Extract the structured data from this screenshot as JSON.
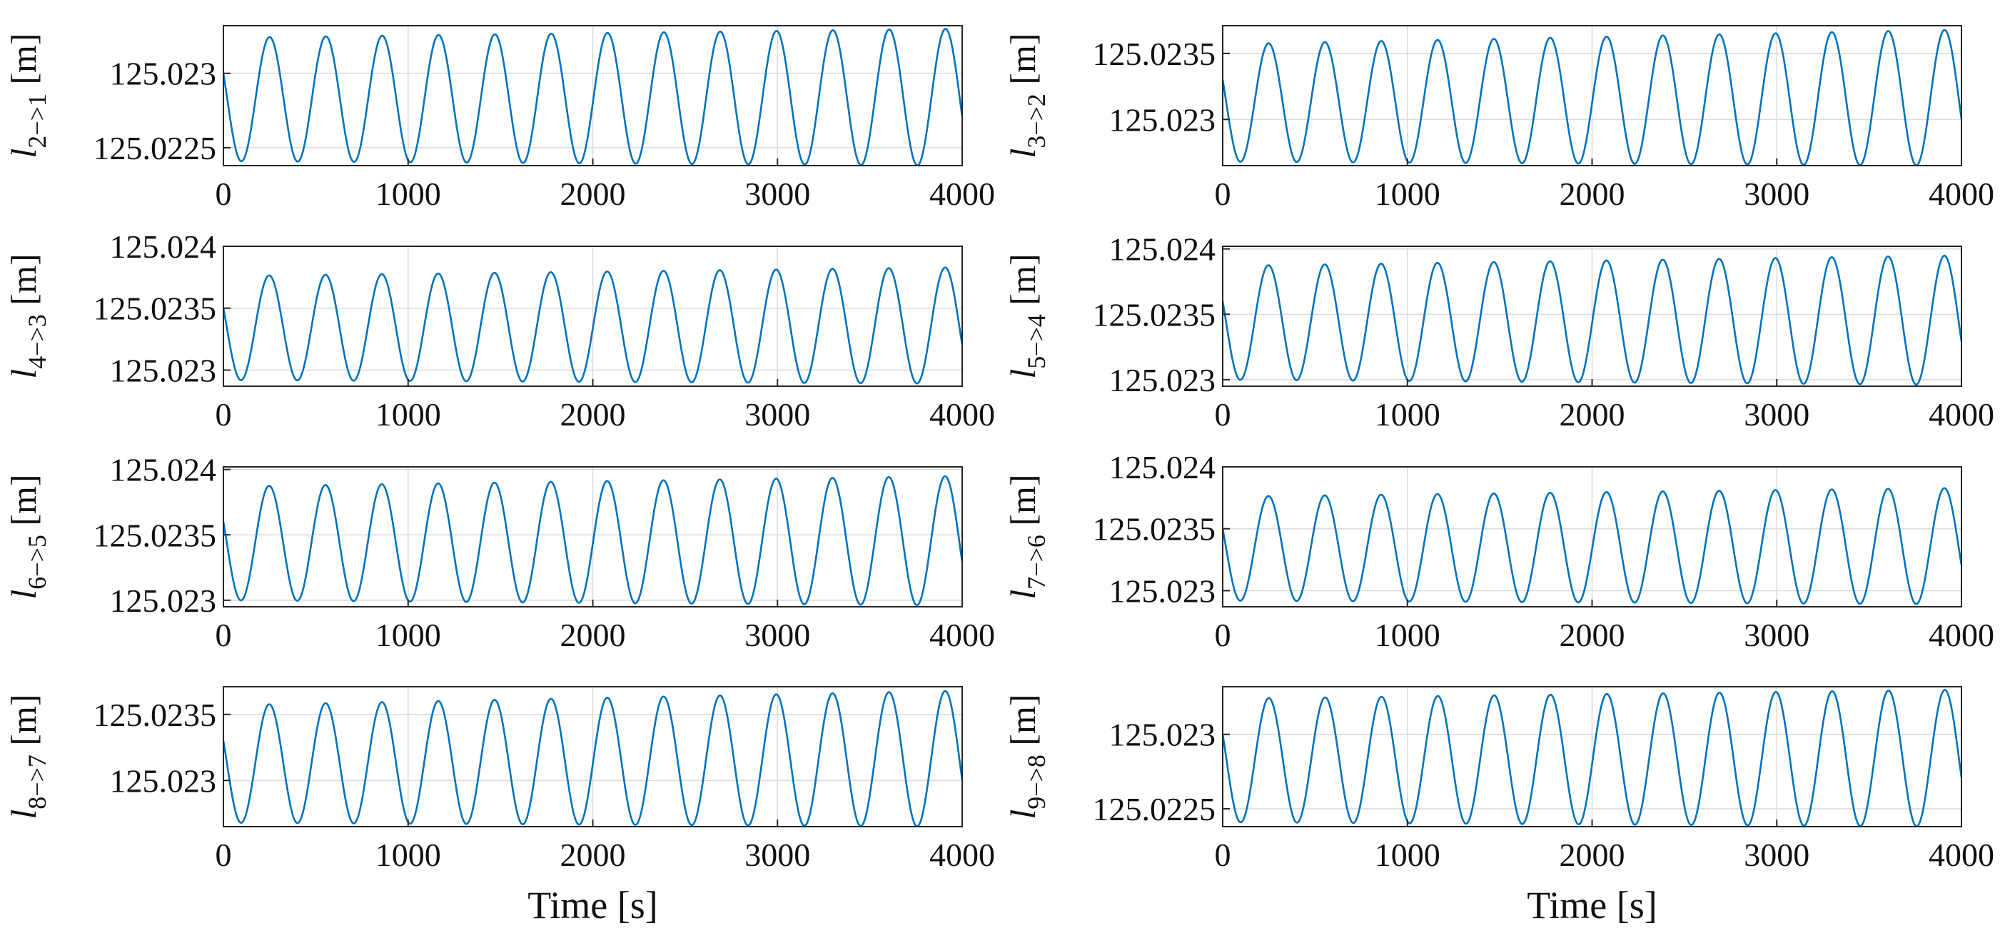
{
  "colors": {
    "series": "#0072BD",
    "grid": "#dcdcdc",
    "axis": "#262626"
  },
  "chart_data": [
    {
      "type": "line",
      "ylabel": {
        "symbol": "l",
        "subscript": "2−>1",
        "unit": "[m]"
      },
      "xlabel": "",
      "xlim": [
        0,
        4000
      ],
      "ylim": [
        125.02238,
        125.02332
      ],
      "xticks": [
        0,
        1000,
        2000,
        3000,
        4000
      ],
      "xtick_labels": [
        "0",
        "1000",
        "2000",
        "3000",
        "4000"
      ],
      "yticks": [
        125.0225,
        125.023
      ],
      "ytick_labels": [
        "125.0225",
        "125.023"
      ],
      "grid": true,
      "series": [
        {
          "period": 305,
          "start": 125.023,
          "min_start": 125.02241,
          "min_end": 125.02238,
          "max_start": 125.02324,
          "max_end": 125.0233
        }
      ]
    },
    {
      "type": "line",
      "ylabel": {
        "symbol": "l",
        "subscript": "3−>2",
        "unit": "[m]"
      },
      "xlabel": "",
      "xlim": [
        0,
        4000
      ],
      "ylim": [
        125.02265,
        125.02371
      ],
      "xticks": [
        0,
        1000,
        2000,
        3000,
        4000
      ],
      "xtick_labels": [
        "0",
        "1000",
        "2000",
        "3000",
        "4000"
      ],
      "yticks": [
        125.023,
        125.0235
      ],
      "ytick_labels": [
        "125.023",
        "125.0235"
      ],
      "grid": true,
      "series": [
        {
          "period": 305,
          "start": 125.0233,
          "min_start": 125.02268,
          "min_end": 125.02265,
          "max_start": 125.02357,
          "max_end": 125.02368
        }
      ]
    },
    {
      "type": "line",
      "ylabel": {
        "symbol": "l",
        "subscript": "4−>3",
        "unit": "[m]"
      },
      "xlabel": "",
      "xlim": [
        0,
        4000
      ],
      "ylim": [
        125.02287,
        125.024
      ],
      "xticks": [
        0,
        1000,
        2000,
        3000,
        4000
      ],
      "xtick_labels": [
        "0",
        "1000",
        "2000",
        "3000",
        "4000"
      ],
      "yticks": [
        125.023,
        125.0235,
        125.024
      ],
      "ytick_labels": [
        "125.023",
        "125.0235",
        "125.024"
      ],
      "grid": true,
      "series": [
        {
          "period": 305,
          "start": 125.0235,
          "min_start": 125.02292,
          "min_end": 125.02289,
          "max_start": 125.02376,
          "max_end": 125.02383
        }
      ]
    },
    {
      "type": "line",
      "ylabel": {
        "symbol": "l",
        "subscript": "5−>4",
        "unit": "[m]"
      },
      "xlabel": "",
      "xlim": [
        0,
        4000
      ],
      "ylim": [
        125.02295,
        125.02402
      ],
      "xticks": [
        0,
        1000,
        2000,
        3000,
        4000
      ],
      "xtick_labels": [
        "0",
        "1000",
        "2000",
        "3000",
        "4000"
      ],
      "yticks": [
        125.023,
        125.0235,
        125.024
      ],
      "ytick_labels": [
        "125.023",
        "125.0235",
        "125.024"
      ],
      "grid": true,
      "series": [
        {
          "period": 305,
          "start": 125.0236,
          "min_start": 125.023,
          "min_end": 125.02296,
          "max_start": 125.02387,
          "max_end": 125.02395
        }
      ]
    },
    {
      "type": "line",
      "ylabel": {
        "symbol": "l",
        "subscript": "6−>5",
        "unit": "[m]"
      },
      "xlabel": "",
      "xlim": [
        0,
        4000
      ],
      "ylim": [
        125.02295,
        125.02402
      ],
      "xticks": [
        0,
        1000,
        2000,
        3000,
        4000
      ],
      "xtick_labels": [
        "0",
        "1000",
        "2000",
        "3000",
        "4000"
      ],
      "yticks": [
        125.023,
        125.0235,
        125.024
      ],
      "ytick_labels": [
        "125.023",
        "125.0235",
        "125.024"
      ],
      "grid": true,
      "series": [
        {
          "period": 305,
          "start": 125.0236,
          "min_start": 125.023,
          "min_end": 125.02296,
          "max_start": 125.02387,
          "max_end": 125.02395
        }
      ]
    },
    {
      "type": "line",
      "ylabel": {
        "symbol": "l",
        "subscript": "7−>6",
        "unit": "[m]"
      },
      "xlabel": "",
      "xlim": [
        0,
        4000
      ],
      "ylim": [
        125.02287,
        125.024
      ],
      "xticks": [
        0,
        1000,
        2000,
        3000,
        4000
      ],
      "xtick_labels": [
        "0",
        "1000",
        "2000",
        "3000",
        "4000"
      ],
      "yticks": [
        125.023,
        125.0235,
        125.024
      ],
      "ytick_labels": [
        "125.023",
        "125.0235",
        "125.024"
      ],
      "grid": true,
      "series": [
        {
          "period": 305,
          "start": 125.0235,
          "min_start": 125.02292,
          "min_end": 125.02289,
          "max_start": 125.02376,
          "max_end": 125.02383
        }
      ]
    },
    {
      "type": "line",
      "ylabel": {
        "symbol": "l",
        "subscript": "8−>7",
        "unit": "[m]"
      },
      "xlabel": "Time [s]",
      "xlim": [
        0,
        4000
      ],
      "ylim": [
        125.02265,
        125.02371
      ],
      "xticks": [
        0,
        1000,
        2000,
        3000,
        4000
      ],
      "xtick_labels": [
        "0",
        "1000",
        "2000",
        "3000",
        "4000"
      ],
      "yticks": [
        125.023,
        125.0235
      ],
      "ytick_labels": [
        "125.023",
        "125.0235"
      ],
      "grid": true,
      "series": [
        {
          "period": 305,
          "start": 125.0233,
          "min_start": 125.02268,
          "min_end": 125.02265,
          "max_start": 125.02357,
          "max_end": 125.02368
        }
      ]
    },
    {
      "type": "line",
      "ylabel": {
        "symbol": "l",
        "subscript": "9−>8",
        "unit": "[m]"
      },
      "xlabel": "Time [s]",
      "xlim": [
        0,
        4000
      ],
      "ylim": [
        125.02238,
        125.02332
      ],
      "xticks": [
        0,
        1000,
        2000,
        3000,
        4000
      ],
      "xtick_labels": [
        "0",
        "1000",
        "2000",
        "3000",
        "4000"
      ],
      "yticks": [
        125.0225,
        125.023
      ],
      "ytick_labels": [
        "125.0225",
        "125.023"
      ],
      "grid": true,
      "series": [
        {
          "period": 305,
          "start": 125.023,
          "min_start": 125.02241,
          "min_end": 125.02238,
          "max_start": 125.02324,
          "max_end": 125.0233
        }
      ]
    }
  ]
}
